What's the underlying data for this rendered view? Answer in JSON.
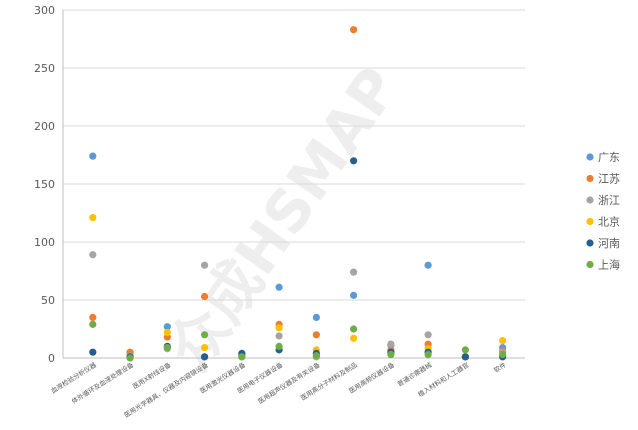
{
  "chart_data": {
    "type": "scatter",
    "title": "",
    "xlabel": "",
    "ylabel": "",
    "ylim": [
      0,
      300
    ],
    "yticks": [
      0,
      50,
      100,
      150,
      200,
      250,
      300
    ],
    "grid": "horizontal",
    "legend_position": "right",
    "watermark": "众成HSMAP",
    "categories": [
      "血液检验分析仪器",
      "体外循环及血液处理设备",
      "医用X射线设备",
      "医用光学器具、仪器及内窥镜设备",
      "医用激光仪器设备",
      "医用电子仪器设备",
      "医用超声仪器及有关设备",
      "医用高分子材料及制品",
      "医用高频仪器设备",
      "普通诊察器械",
      "植入材料和人工器官",
      "软件"
    ],
    "series": [
      {
        "name": "广东",
        "color": "#5b9bd5",
        "values": [
          174,
          4,
          27,
          1,
          3,
          61,
          35,
          54,
          11,
          80,
          1,
          9
        ]
      },
      {
        "name": "江苏",
        "color": "#ed7d31",
        "values": [
          35,
          5,
          18,
          53,
          1,
          29,
          20,
          283,
          7,
          12,
          1,
          6
        ]
      },
      {
        "name": "浙江",
        "color": "#a5a5a5",
        "values": [
          89,
          2,
          8,
          80,
          2,
          19,
          1,
          74,
          12,
          20,
          1,
          5
        ]
      },
      {
        "name": "北京",
        "color": "#ffc000",
        "values": [
          121,
          1,
          22,
          9,
          1,
          26,
          7,
          17,
          4,
          8,
          1,
          15
        ]
      },
      {
        "name": "河南",
        "color": "#255e91",
        "values": [
          5,
          1,
          10,
          1,
          4,
          7,
          4,
          170,
          5,
          5,
          1,
          1
        ]
      },
      {
        "name": "上海",
        "color": "#70ad47",
        "values": [
          29,
          0,
          9,
          20,
          1,
          10,
          2,
          25,
          3,
          3,
          7,
          3
        ]
      }
    ]
  }
}
